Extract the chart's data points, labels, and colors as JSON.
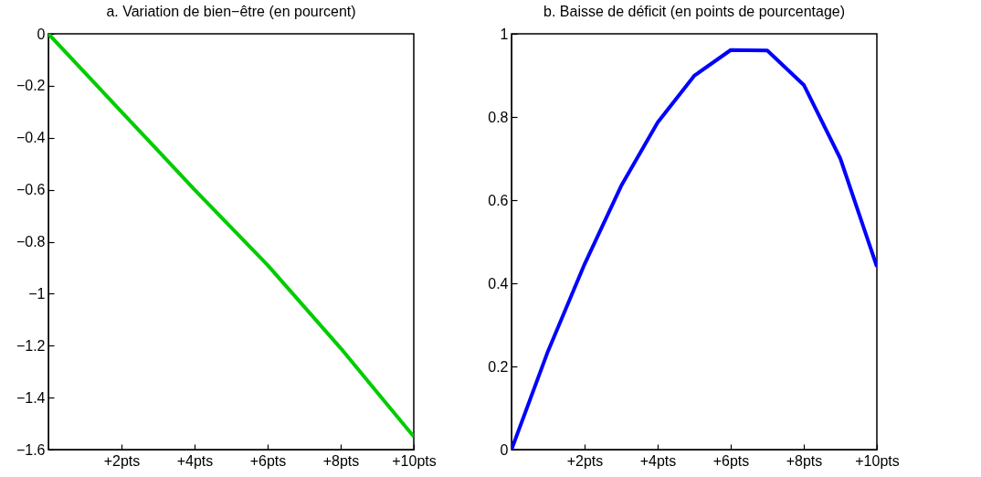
{
  "chart_data": [
    {
      "type": "line",
      "title": "a. Variation de bien−être (en pourcent)",
      "x": [
        0,
        1,
        2,
        3,
        4,
        5,
        6,
        7,
        8,
        9,
        10
      ],
      "series": [
        {
          "color": "#00cc00",
          "values": [
            0,
            -0.15,
            -0.3,
            -0.45,
            -0.6,
            -0.745,
            -0.89,
            -1.05,
            -1.21,
            -1.38,
            -1.55
          ]
        }
      ],
      "xlim": [
        0,
        10
      ],
      "xticks": [
        {
          "value": 2,
          "label": "+2pts"
        },
        {
          "value": 4,
          "label": "+4pts"
        },
        {
          "value": 6,
          "label": "+6pts"
        },
        {
          "value": 8,
          "label": "+8pts"
        },
        {
          "value": 10,
          "label": "+10pts"
        }
      ],
      "ylim": [
        -1.6,
        0
      ],
      "yticks": [
        -1.6,
        -1.4,
        -1.2,
        -1,
        -0.8,
        -0.6,
        -0.4,
        -0.2,
        0
      ],
      "grid": false
    },
    {
      "type": "line",
      "title": "b. Baisse de déficit (en points de pourcentage)",
      "x": [
        0,
        1,
        2,
        3,
        4,
        5,
        6,
        7,
        8,
        9,
        10
      ],
      "series": [
        {
          "color": "#0000ff",
          "values": [
            0,
            0.237,
            0.446,
            0.634,
            0.787,
            0.899,
            0.961,
            0.96,
            0.877,
            0.7,
            0.44
          ]
        }
      ],
      "xlim": [
        0,
        10
      ],
      "xticks": [
        {
          "value": 2,
          "label": "+2pts"
        },
        {
          "value": 4,
          "label": "+4pts"
        },
        {
          "value": 6,
          "label": "+6pts"
        },
        {
          "value": 8,
          "label": "+8pts"
        },
        {
          "value": 10,
          "label": "+10pts"
        }
      ],
      "ylim": [
        0,
        1
      ],
      "yticks": [
        0,
        0.2,
        0.4,
        0.6,
        0.8,
        1
      ],
      "grid": false
    }
  ]
}
